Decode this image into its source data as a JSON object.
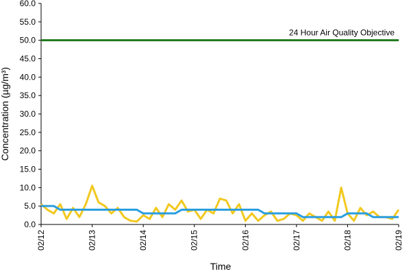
{
  "chart_data": {
    "type": "line",
    "x_label": "Time",
    "y_label": "Concentration (µg/m³)",
    "x": [
      0,
      0.125,
      0.25,
      0.375,
      0.5,
      0.625,
      0.75,
      0.875,
      1,
      1.125,
      1.25,
      1.375,
      1.5,
      1.625,
      1.75,
      1.875,
      2,
      2.125,
      2.25,
      2.375,
      2.5,
      2.625,
      2.75,
      2.875,
      3,
      3.125,
      3.25,
      3.375,
      3.5,
      3.625,
      3.75,
      3.875,
      4,
      4.125,
      4.25,
      4.375,
      4.5,
      4.625,
      4.75,
      4.875,
      5,
      5.125,
      5.25,
      5.375,
      5.5,
      5.625,
      5.75,
      5.875,
      6,
      6.125,
      6.25,
      6.375,
      6.5,
      6.625,
      6.75,
      6.875,
      7
    ],
    "series": [
      {
        "color": "#f2c81e",
        "values": [
          5.5,
          4,
          3,
          5.5,
          1.5,
          4.5,
          2,
          5.5,
          10.5,
          6,
          5,
          3,
          4.5,
          2,
          1,
          0.8,
          2.5,
          1.5,
          4.5,
          2,
          5.5,
          4,
          6.5,
          3.5,
          4,
          1.5,
          4,
          3,
          7,
          6.5,
          3,
          5.5,
          1,
          3,
          1,
          2.5,
          3.5,
          1,
          1.5,
          3,
          2.5,
          1,
          3,
          2,
          1,
          3.5,
          1,
          10,
          3,
          1,
          4.5,
          2.5,
          3.5,
          2,
          2,
          1.5,
          4
        ]
      },
      {
        "color": "#2a9ee0",
        "values": [
          5,
          5,
          5,
          4,
          4,
          4,
          4,
          4,
          4,
          4,
          4,
          4,
          4,
          4,
          4,
          4,
          3,
          3,
          3,
          3,
          3,
          3,
          4,
          4,
          4,
          4,
          4,
          4,
          4,
          4,
          4,
          4,
          4,
          4,
          4,
          3,
          3,
          3,
          3,
          3,
          3,
          2,
          2,
          2,
          2,
          2,
          2,
          2,
          3,
          3,
          3,
          3,
          2,
          2,
          2,
          2,
          2
        ]
      }
    ],
    "objective": {
      "label": "24 Hour Air Quality Objective",
      "value": 50,
      "color": "#1e7a1e"
    },
    "xlim": [
      0,
      7
    ],
    "xticks": [
      {
        "value": 0,
        "label": "02/12"
      },
      {
        "value": 1,
        "label": "02/13"
      },
      {
        "value": 2,
        "label": "02/14"
      },
      {
        "value": 3,
        "label": "02/15"
      },
      {
        "value": 4,
        "label": "02/16"
      },
      {
        "value": 5,
        "label": "02/17"
      },
      {
        "value": 6,
        "label": "02/18"
      },
      {
        "value": 7,
        "label": "02/19"
      }
    ],
    "ylim": [
      0,
      60
    ],
    "yticks": [
      {
        "value": 0,
        "label": "0.0"
      },
      {
        "value": 5,
        "label": "5.0"
      },
      {
        "value": 10,
        "label": "10.0"
      },
      {
        "value": 15,
        "label": "15.0"
      },
      {
        "value": 20,
        "label": "20.0"
      },
      {
        "value": 25,
        "label": "25.0"
      },
      {
        "value": 30,
        "label": "30.0"
      },
      {
        "value": 35,
        "label": "35.0"
      },
      {
        "value": 40,
        "label": "40.0"
      },
      {
        "value": 45,
        "label": "45.0"
      },
      {
        "value": 50,
        "label": "50.0"
      },
      {
        "value": 55,
        "label": "55.0"
      },
      {
        "value": 60,
        "label": "60.0"
      }
    ]
  }
}
